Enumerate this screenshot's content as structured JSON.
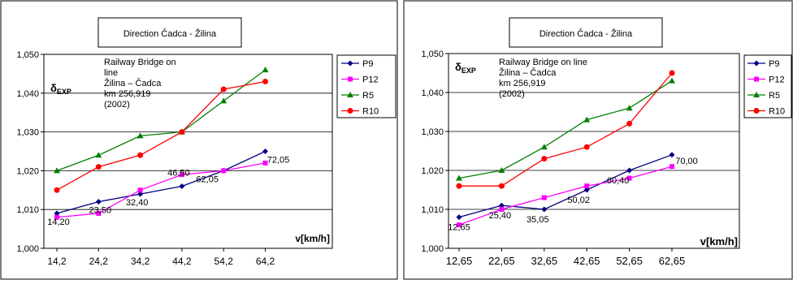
{
  "charts": [
    {
      "id": "left",
      "title": "Direction Čadca - Žilina",
      "ylabel": "δ",
      "ylabel_sub": "EXP",
      "xlabel": "v[km/h]",
      "annotation": [
        "Railway Bridge on",
        "line",
        "Žilina – Čadca",
        "km 256,919",
        "(2002)"
      ],
      "yticks": [
        "1,000",
        "1,010",
        "1,020",
        "1,030",
        "1,040",
        "1,050"
      ],
      "xticks": [
        "14,2",
        "24,2",
        "34,2",
        "44,2",
        "54,2",
        "64,2"
      ],
      "legend": [
        "P9",
        "P12",
        "R5",
        "R10"
      ],
      "point_labels": [
        "14,20",
        "23,50",
        "32,40",
        "46,50",
        "62,05",
        "72,05"
      ]
    },
    {
      "id": "right",
      "title": "Direction Čadca - Žilina",
      "ylabel": "δ",
      "ylabel_sub": "EXP",
      "xlabel": "v[km/h]",
      "annotation": [
        "Railway Bridge on line",
        "Žilina – Čadca",
        "km 256,919",
        "(2002)"
      ],
      "yticks": [
        "1,000",
        "1,010",
        "1,020",
        "1,030",
        "1,040",
        "1,050"
      ],
      "xticks": [
        "12,65",
        "22,65",
        "32,65",
        "42,65",
        "52,65",
        "62,65"
      ],
      "legend": [
        "P9",
        "P12",
        "R5",
        "R10"
      ],
      "point_labels": [
        "12,65",
        "25,40",
        "35,05",
        "50,02",
        "60,40",
        "70,00"
      ]
    }
  ],
  "chart_data": [
    {
      "type": "line",
      "title": "Direction Čadca - Žilina",
      "xlabel": "v[km/h]",
      "ylabel": "δEXP",
      "x": [
        14.2,
        23.5,
        32.4,
        46.5,
        62.05,
        72.05
      ],
      "ylim": [
        1.0,
        1.05
      ],
      "grid": true,
      "legend_position": "right",
      "series": [
        {
          "name": "P9",
          "color": "#000080",
          "marker": "diamond",
          "values": [
            1.009,
            1.012,
            1.014,
            1.016,
            1.02,
            1.025
          ]
        },
        {
          "name": "P12",
          "color": "#ff00ff",
          "marker": "square",
          "values": [
            1.008,
            1.009,
            1.015,
            1.019,
            1.02,
            1.022
          ]
        },
        {
          "name": "R5",
          "color": "#008000",
          "marker": "triangle",
          "values": [
            1.02,
            1.024,
            1.029,
            1.03,
            1.038,
            1.046
          ]
        },
        {
          "name": "R10",
          "color": "#ff0000",
          "marker": "circle",
          "values": [
            1.015,
            1.021,
            1.024,
            1.03,
            1.041,
            1.043
          ]
        }
      ]
    },
    {
      "type": "line",
      "title": "Direction Čadca - Žilina",
      "xlabel": "v[km/h]",
      "ylabel": "δEXP",
      "x": [
        12.65,
        25.4,
        35.05,
        50.02,
        60.4,
        70.0
      ],
      "ylim": [
        1.0,
        1.05
      ],
      "grid": true,
      "legend_position": "right",
      "series": [
        {
          "name": "P9",
          "color": "#000080",
          "marker": "diamond",
          "values": [
            1.008,
            1.011,
            1.01,
            1.015,
            1.02,
            1.024
          ]
        },
        {
          "name": "P12",
          "color": "#ff00ff",
          "marker": "square",
          "values": [
            1.006,
            1.01,
            1.013,
            1.016,
            1.018,
            1.021
          ]
        },
        {
          "name": "R5",
          "color": "#008000",
          "marker": "triangle",
          "values": [
            1.018,
            1.02,
            1.026,
            1.033,
            1.036,
            1.043
          ]
        },
        {
          "name": "R10",
          "color": "#ff0000",
          "marker": "circle",
          "values": [
            1.016,
            1.016,
            1.023,
            1.026,
            1.032,
            1.045
          ]
        }
      ]
    }
  ]
}
